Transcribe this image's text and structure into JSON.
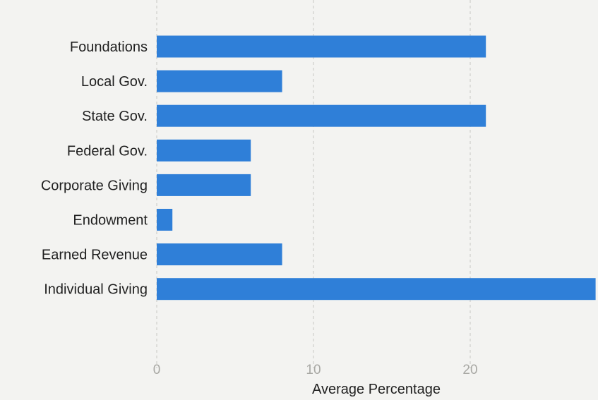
{
  "chart_data": {
    "type": "bar",
    "orientation": "horizontal",
    "categories": [
      "Foundations",
      "Local Gov.",
      "State Gov.",
      "Federal Gov.",
      "Corporate Giving",
      "Endowment",
      "Earned Revenue",
      "Individual Giving"
    ],
    "values": [
      21,
      8,
      21,
      6,
      6,
      1,
      8,
      28
    ],
    "title": "",
    "xlabel": "Average Percentage",
    "ylabel": "",
    "xlim": [
      0,
      28
    ],
    "xticks": [
      0,
      10,
      20
    ],
    "xtick_labels": [
      "0",
      "10",
      "20"
    ],
    "grid": "vertical dashed",
    "legend": "none"
  },
  "colors": {
    "bar": "#2f7fd8",
    "grid": "#c7c7c2",
    "tick_label": "#a8a8a4",
    "category_label": "#1f1f1f",
    "axis_label": "#1f1f1f",
    "background": "#f3f3f1"
  }
}
